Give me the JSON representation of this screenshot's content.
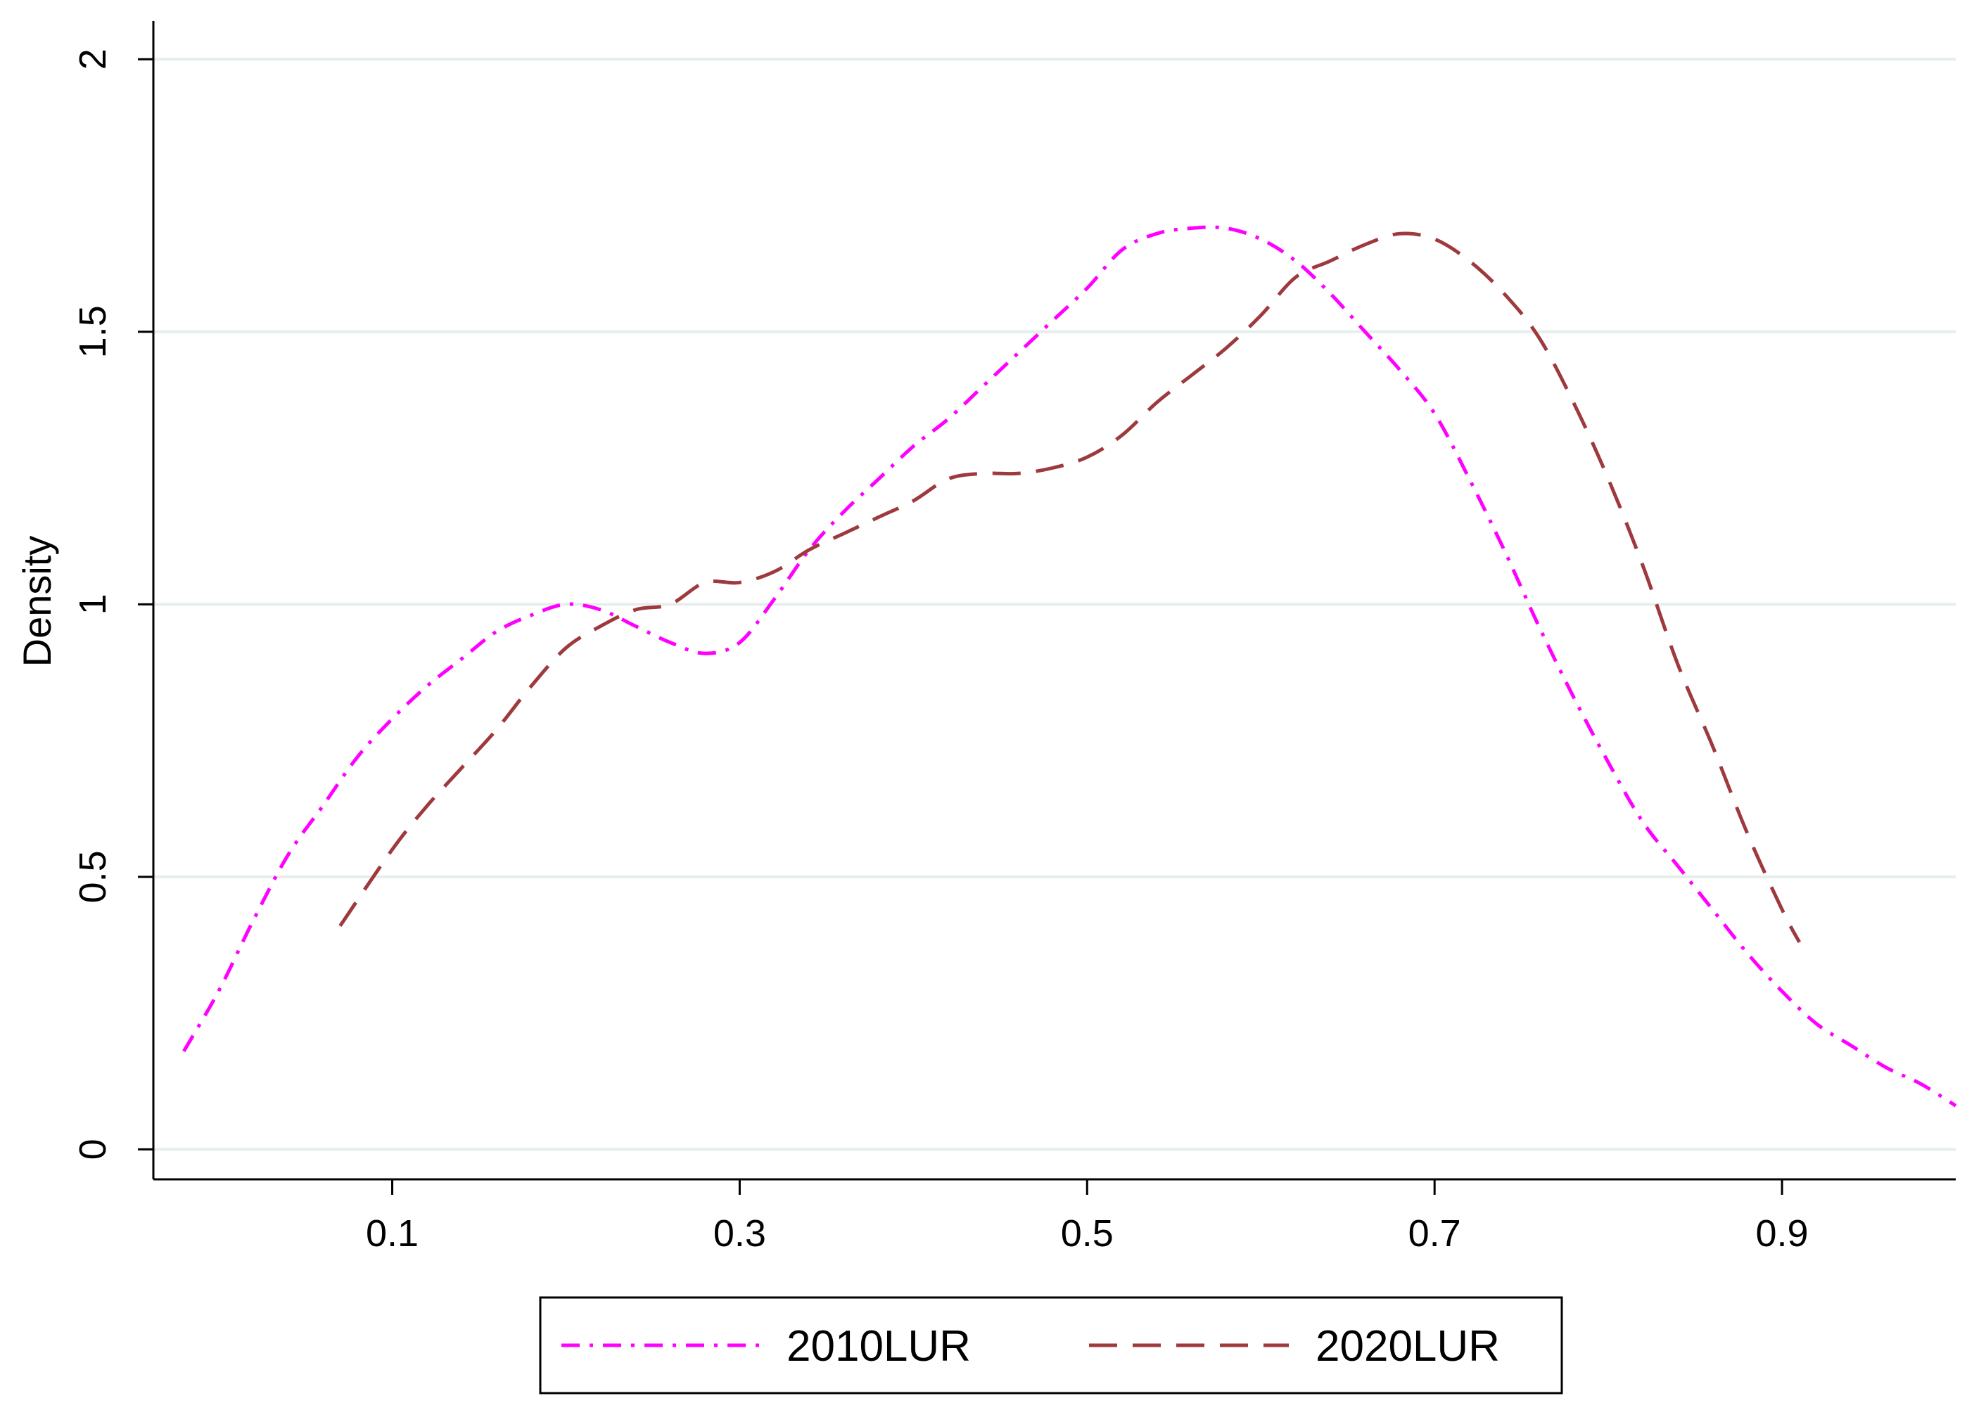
{
  "chart_data": {
    "type": "line",
    "title": "",
    "xlabel": "",
    "ylabel": "Density",
    "xlim": [
      -0.0375,
      1.0
    ],
    "ylim": [
      -0.055,
      2.07
    ],
    "xticks": [
      0.1,
      0.3,
      0.5,
      0.7,
      0.9
    ],
    "xtick_labels": [
      "0.1",
      "0.3",
      "0.5",
      "0.7",
      "0.9"
    ],
    "yticks": [
      0,
      0.5,
      1,
      1.5,
      2
    ],
    "ytick_labels": [
      "0",
      "0.5",
      "1",
      "1.5",
      "2"
    ],
    "grid": "horizontal",
    "legend_position": "bottom",
    "series": [
      {
        "name": "2010LUR",
        "color": "#ff00ff",
        "dash": "dash-dot",
        "x": [
          -0.02,
          0.0,
          0.02,
          0.04,
          0.06,
          0.08,
          0.1,
          0.12,
          0.14,
          0.16,
          0.18,
          0.2,
          0.22,
          0.24,
          0.26,
          0.28,
          0.3,
          0.32,
          0.34,
          0.36,
          0.38,
          0.4,
          0.42,
          0.44,
          0.46,
          0.48,
          0.5,
          0.52,
          0.54,
          0.56,
          0.58,
          0.6,
          0.62,
          0.64,
          0.66,
          0.68,
          0.7,
          0.72,
          0.74,
          0.76,
          0.78,
          0.8,
          0.82,
          0.84,
          0.86,
          0.88,
          0.9,
          0.92,
          0.94,
          0.96,
          0.98,
          1.0
        ],
        "y": [
          0.18,
          0.29,
          0.42,
          0.54,
          0.63,
          0.72,
          0.79,
          0.85,
          0.9,
          0.95,
          0.98,
          1.0,
          0.99,
          0.96,
          0.93,
          0.91,
          0.93,
          1.01,
          1.1,
          1.17,
          1.23,
          1.29,
          1.34,
          1.4,
          1.46,
          1.52,
          1.58,
          1.65,
          1.68,
          1.69,
          1.69,
          1.67,
          1.63,
          1.57,
          1.5,
          1.43,
          1.35,
          1.23,
          1.1,
          0.96,
          0.83,
          0.71,
          0.6,
          0.52,
          0.44,
          0.36,
          0.29,
          0.23,
          0.19,
          0.15,
          0.12,
          0.08
        ]
      },
      {
        "name": "2020LUR",
        "color": "#9e3a3e",
        "dash": "dash",
        "x": [
          0.07,
          0.1,
          0.12,
          0.14,
          0.16,
          0.18,
          0.2,
          0.22,
          0.24,
          0.26,
          0.28,
          0.3,
          0.32,
          0.34,
          0.36,
          0.38,
          0.4,
          0.42,
          0.44,
          0.46,
          0.48,
          0.5,
          0.52,
          0.54,
          0.56,
          0.58,
          0.6,
          0.62,
          0.64,
          0.66,
          0.68,
          0.7,
          0.72,
          0.74,
          0.76,
          0.78,
          0.8,
          0.82,
          0.84,
          0.86,
          0.88,
          0.9,
          0.91
        ],
        "y": [
          0.41,
          0.55,
          0.63,
          0.7,
          0.77,
          0.85,
          0.92,
          0.96,
          0.99,
          1.0,
          1.04,
          1.04,
          1.06,
          1.1,
          1.13,
          1.16,
          1.19,
          1.23,
          1.24,
          1.24,
          1.25,
          1.27,
          1.31,
          1.37,
          1.42,
          1.47,
          1.53,
          1.6,
          1.63,
          1.66,
          1.68,
          1.67,
          1.63,
          1.57,
          1.49,
          1.37,
          1.23,
          1.07,
          0.89,
          0.74,
          0.58,
          0.44,
          0.38
        ]
      }
    ]
  }
}
